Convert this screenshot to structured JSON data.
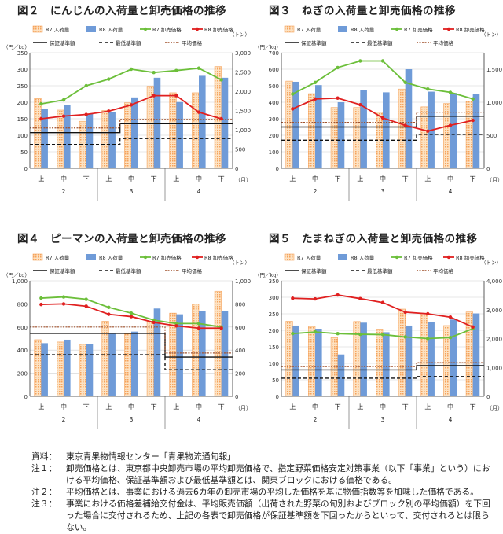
{
  "charts": [
    {
      "title": "図２　にんじんの入荷量と卸売価格の推移",
      "left_unit": "（円／kg）",
      "right_unit": "（トン）",
      "x_unit": "（月）",
      "left_ticks": [
        "0",
        "50",
        "100",
        "150",
        "200",
        "250",
        "300",
        "350"
      ],
      "right_ticks": [
        "0",
        "500",
        "1,000",
        "1,500",
        "2,000",
        "2,500",
        "3,000"
      ],
      "x_labels": [
        "上",
        "中",
        "下",
        "上",
        "中",
        "下",
        "上",
        "中",
        "下"
      ],
      "months": [
        "2",
        "3",
        "4"
      ],
      "legend": {
        "r7_volume": "R7 入荷量",
        "r8_volume": "R8 入荷量",
        "r7_price": "R7 卸売価格",
        "r8_price": "R8 卸売価格",
        "guarantee": "保証基準額",
        "minimum": "最低基準額",
        "average": "平均価格"
      }
    },
    {
      "title": "図３　ねぎの入荷量と卸売価格の推移",
      "left_unit": "（円／kg）",
      "right_unit": "（トン）",
      "x_unit": "（月）",
      "left_ticks": [
        "0",
        "100",
        "200",
        "300",
        "400",
        "500",
        "600",
        "700"
      ],
      "right_ticks": [
        "0",
        "500",
        "1,000",
        "1,500"
      ],
      "x_labels": [
        "上",
        "中",
        "下",
        "上",
        "中",
        "下",
        "上",
        "中",
        "下"
      ],
      "months": [
        "2",
        "3",
        "4"
      ],
      "legend": {
        "r7_volume": "R7 入荷量",
        "r8_volume": "R8 入荷量",
        "r7_price": "R7 卸売価格",
        "r8_price": "R8 卸売価格",
        "guarantee": "保証基準額",
        "minimum": "最低基準額",
        "average": "平均価格"
      }
    },
    {
      "title": "図４　ピーマンの入荷量と卸売価格の推移",
      "left_unit": "（円／kg）",
      "right_unit": "（トン）",
      "x_unit": "（月）",
      "left_ticks": [
        "0",
        "200",
        "400",
        "600",
        "800",
        "1,000"
      ],
      "right_ticks": [
        "0",
        "200",
        "400",
        "600",
        "800",
        "1,000"
      ],
      "x_labels": [
        "上",
        "中",
        "下",
        "上",
        "中",
        "下",
        "上",
        "中",
        "下"
      ],
      "months": [
        "2",
        "3",
        "4"
      ],
      "legend": {
        "r7_volume": "R7 入荷量",
        "r8_volume": "R8 入荷量",
        "r7_price": "R7 卸売価格",
        "r8_price": "R8 卸売価格",
        "guarantee": "保証基準額",
        "minimum": "最低基準額",
        "average": "平均価格"
      }
    },
    {
      "title": "図５　たまねぎの入荷量と卸売価格の推移",
      "left_unit": "（円／kg）",
      "right_unit": "（トン）",
      "x_unit": "（月）",
      "left_ticks": [
        "0",
        "50",
        "100",
        "150",
        "200",
        "250",
        "300",
        "350"
      ],
      "right_ticks": [
        "0",
        "1,000",
        "2,000",
        "3,000",
        "4,000"
      ],
      "x_labels": [
        "上",
        "中",
        "下",
        "上",
        "中",
        "下",
        "上",
        "中",
        "下"
      ],
      "months": [
        "2",
        "3",
        "4"
      ],
      "legend": {
        "r7_volume": "R7 入荷量",
        "r8_volume": "R8 入荷量",
        "r7_price": "R7 卸売価格",
        "r8_price": "R8 卸売価格",
        "guarantee": "保証基準額",
        "minimum": "最低基準額",
        "average": "平均価格"
      }
    }
  ],
  "chart_data": [
    {
      "type": "bar",
      "title": "図２　にんじんの入荷量と卸売価格の推移",
      "categories": [
        "2月上",
        "2月中",
        "2月下",
        "3月上",
        "3月中",
        "3月下",
        "4月上",
        "4月中",
        "4月下"
      ],
      "left_axis": {
        "unit": "円／kg",
        "range": [
          0,
          350
        ]
      },
      "right_axis": {
        "unit": "トン",
        "range": [
          0,
          3000
        ]
      },
      "grid": true,
      "legend_position": "top",
      "colors": {
        "r7_volume": "#f5a35c",
        "r8_volume": "#6f9bd8",
        "r7_price": "#6cbf3a",
        "r8_price": "#e02020"
      },
      "bars": [
        {
          "name": "R7 入荷量",
          "axis": "right",
          "values": [
            1810,
            1510,
            1220,
            1500,
            1700,
            2130,
            1960,
            1960,
            2640
          ]
        },
        {
          "name": "R8 入荷量",
          "axis": "right",
          "values": [
            1540,
            1640,
            1420,
            1460,
            1840,
            2350,
            1720,
            2400,
            2350
          ]
        }
      ],
      "lines": [
        {
          "name": "R7 卸売価格",
          "axis": "left",
          "values": [
            195,
            207,
            250,
            270,
            300,
            290,
            296,
            303,
            268
          ]
        },
        {
          "name": "R8 卸売価格",
          "axis": "left",
          "values": [
            150,
            158,
            163,
            173,
            192,
            220,
            220,
            170,
            150
          ]
        }
      ],
      "reference_lines": [
        {
          "name": "保証基準額",
          "style": "solid",
          "values": [
            108,
            108,
            108,
            108,
            135,
            135,
            135,
            135,
            135
          ]
        },
        {
          "name": "最低基準額",
          "style": "dashed",
          "values": [
            72,
            72,
            72,
            72,
            90,
            90,
            90,
            90,
            90
          ]
        },
        {
          "name": "平均価格",
          "style": "dotted",
          "values": [
            122,
            122,
            122,
            122,
            148,
            148,
            148,
            148,
            148
          ]
        }
      ]
    },
    {
      "type": "bar",
      "title": "図３　ねぎの入荷量と卸売価格の推移",
      "categories": [
        "2月上",
        "2月中",
        "2月下",
        "3月上",
        "3月中",
        "3月下",
        "4月上",
        "4月中",
        "4月下"
      ],
      "left_axis": {
        "unit": "円／kg",
        "range": [
          0,
          700
        ]
      },
      "right_axis": {
        "unit": "トン",
        "range": [
          0,
          1750
        ]
      },
      "grid": true,
      "legend_position": "top",
      "colors": {
        "r7_volume": "#f5a35c",
        "r8_volume": "#6f9bd8",
        "r7_price": "#6cbf3a",
        "r8_price": "#e02020"
      },
      "bars": [
        {
          "name": "R7 入荷量",
          "axis": "right",
          "values": [
            1320,
            1130,
            920,
            920,
            850,
            1200,
            930,
            980,
            1020
          ]
        },
        {
          "name": "R8 入荷量",
          "axis": "right",
          "values": [
            1310,
            1260,
            1000,
            1190,
            1150,
            1500,
            1160,
            1140,
            1130
          ]
        }
      ],
      "lines": [
        {
          "name": "R7 卸売価格",
          "axis": "left",
          "values": [
            450,
            520,
            610,
            650,
            650,
            520,
            480,
            460,
            420
          ]
        },
        {
          "name": "R8 卸売価格",
          "axis": "left",
          "values": [
            360,
            420,
            425,
            385,
            305,
            260,
            225,
            260,
            290
          ]
        }
      ],
      "reference_lines": [
        {
          "name": "保証基準額",
          "style": "solid",
          "values": [
            250,
            250,
            250,
            250,
            250,
            250,
            315,
            315,
            315
          ]
        },
        {
          "name": "最低基準額",
          "style": "dashed",
          "values": [
            170,
            170,
            170,
            170,
            170,
            170,
            205,
            205,
            205
          ]
        },
        {
          "name": "平均価格",
          "style": "dotted",
          "values": [
            278,
            278,
            278,
            278,
            278,
            278,
            340,
            340,
            340
          ]
        }
      ]
    },
    {
      "type": "bar",
      "title": "図４　ピーマンの入荷量と卸売価格の推移",
      "categories": [
        "2月上",
        "2月中",
        "2月下",
        "3月上",
        "3月中",
        "3月下",
        "4月上",
        "4月中",
        "4月下"
      ],
      "left_axis": {
        "unit": "円／kg",
        "range": [
          0,
          1000
        ]
      },
      "right_axis": {
        "unit": "トン",
        "range": [
          0,
          1000
        ]
      },
      "grid": true,
      "legend_position": "top",
      "colors": {
        "r7_volume": "#f5a35c",
        "r8_volume": "#6f9bd8",
        "r7_price": "#6cbf3a",
        "r8_price": "#e02020"
      },
      "bars": [
        {
          "name": "R7 入荷量",
          "axis": "right",
          "values": [
            490,
            470,
            450,
            650,
            540,
            650,
            720,
            800,
            910
          ]
        },
        {
          "name": "R8 入荷量",
          "axis": "right",
          "values": [
            460,
            490,
            450,
            540,
            560,
            760,
            710,
            740,
            740
          ]
        }
      ],
      "lines": [
        {
          "name": "R7 卸売価格",
          "axis": "left",
          "values": [
            850,
            860,
            840,
            770,
            720,
            660,
            630,
            630,
            600
          ]
        },
        {
          "name": "R8 卸売価格",
          "axis": "left",
          "values": [
            795,
            800,
            780,
            710,
            690,
            640,
            610,
            590,
            590
          ]
        }
      ],
      "reference_lines": [
        {
          "name": "保証基準額",
          "style": "solid",
          "values": [
            545,
            545,
            545,
            545,
            545,
            545,
            340,
            340,
            340
          ]
        },
        {
          "name": "最低基準額",
          "style": "dashed",
          "values": [
            360,
            360,
            360,
            360,
            360,
            360,
            230,
            230,
            230
          ]
        },
        {
          "name": "平均価格",
          "style": "dotted",
          "values": [
            600,
            600,
            600,
            600,
            600,
            600,
            375,
            375,
            375
          ]
        }
      ]
    },
    {
      "type": "bar",
      "title": "図５　たまねぎの入荷量と卸売価格の推移",
      "categories": [
        "2月上",
        "2月中",
        "2月下",
        "3月上",
        "3月中",
        "3月下",
        "4月上",
        "4月中",
        "4月下"
      ],
      "left_axis": {
        "unit": "円／kg",
        "range": [
          0,
          350
        ]
      },
      "right_axis": {
        "unit": "トン",
        "range": [
          0,
          4000
        ]
      },
      "grid": true,
      "legend_position": "top",
      "colors": {
        "r7_volume": "#f5a35c",
        "r8_volume": "#6f9bd8",
        "r7_price": "#6cbf3a",
        "r8_price": "#e02020"
      },
      "bars": [
        {
          "name": "R7 入荷量",
          "axis": "right",
          "values": [
            2600,
            2420,
            2030,
            2590,
            2330,
            3020,
            2880,
            2450,
            2920
          ]
        },
        {
          "name": "R8 入荷量",
          "axis": "right",
          "values": [
            2450,
            2340,
            1450,
            2550,
            2220,
            2450,
            2560,
            2660,
            2870
          ]
        }
      ],
      "lines": [
        {
          "name": "R7 卸売価格",
          "axis": "left",
          "values": [
            190,
            195,
            190,
            188,
            187,
            180,
            175,
            178,
            205
          ]
        },
        {
          "name": "R8 卸売価格",
          "axis": "left",
          "values": [
            297,
            295,
            307,
            296,
            284,
            255,
            250,
            240,
            210
          ]
        }
      ],
      "reference_lines": [
        {
          "name": "保証基準額",
          "style": "solid",
          "values": [
            80,
            80,
            80,
            80,
            80,
            80,
            93,
            93,
            93
          ]
        },
        {
          "name": "最低基準額",
          "style": "dashed",
          "values": [
            55,
            55,
            55,
            55,
            55,
            55,
            60,
            60,
            60
          ]
        },
        {
          "name": "平均価格",
          "style": "dotted",
          "values": [
            90,
            90,
            90,
            90,
            90,
            90,
            102,
            102,
            102
          ]
        }
      ]
    }
  ],
  "notes": [
    {
      "label": "資料：",
      "text": "東京青果物情報センター「青果物流通旬報」"
    },
    {
      "label": "注１：",
      "text": "卸売価格とは、東京都中央卸売市場の平均卸売価格で、指定野菜価格安定対策事業（以下「事業」という）における平均価格、保証基準額および最低基準額とは、関東ブロックにおける価格である。"
    },
    {
      "label": "注２：",
      "text": "平均価格とは、事業における過去6カ年の卸売市場の平均した価格を基に物価指数等を加味した価格である。"
    },
    {
      "label": "注３：",
      "text": "事業における価格差補給交付金は、平均販売価額（出荷された野菜の旬別およびブロック別の平均価額）を下回った場合に交付されるため、上記の各表で卸売価格が保証基準額を下回ったからといって、交付されるとは限らない。"
    }
  ]
}
